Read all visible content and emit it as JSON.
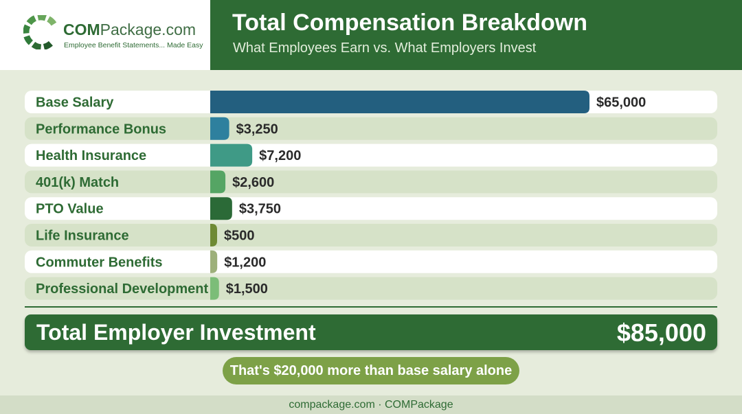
{
  "header": {
    "logo_prefix": "COM",
    "logo_rest": "Package.com",
    "logo_tagline": "Employee Benefit Statements... Made Easy",
    "title": "Total Compensation Breakdown",
    "subtitle": "What Employees Earn vs. What Employers Invest"
  },
  "chart_data": {
    "type": "bar",
    "orientation": "horizontal",
    "title": "Total Compensation Breakdown",
    "subtitle": "What Employees Earn vs. What Employers Invest",
    "xlabel": "",
    "ylabel": "",
    "xlim": [
      0,
      65000
    ],
    "grid": false,
    "categories": [
      "Base Salary",
      "Performance Bonus",
      "Health Insurance",
      "401(k) Match",
      "PTO Value",
      "Life Insurance",
      "Commuter Benefits",
      "Professional Development"
    ],
    "values": [
      65000,
      3250,
      7200,
      2600,
      3750,
      500,
      1200,
      1500
    ],
    "value_labels": [
      "$65,000",
      "$3,250",
      "$7,200",
      "$2,600",
      "$3,750",
      "$500",
      "$1,200",
      "$1,500"
    ],
    "colors": [
      "#235f7f",
      "#2e809e",
      "#3f9a86",
      "#55a564",
      "#2b6a37",
      "#6e8a34",
      "#9db07a",
      "#7cbd78"
    ]
  },
  "total": {
    "label": "Total Employer Investment",
    "value": "$85,000"
  },
  "callout": "That's $20,000 more than base salary alone",
  "footer": "compackage.com · COMPackage"
}
